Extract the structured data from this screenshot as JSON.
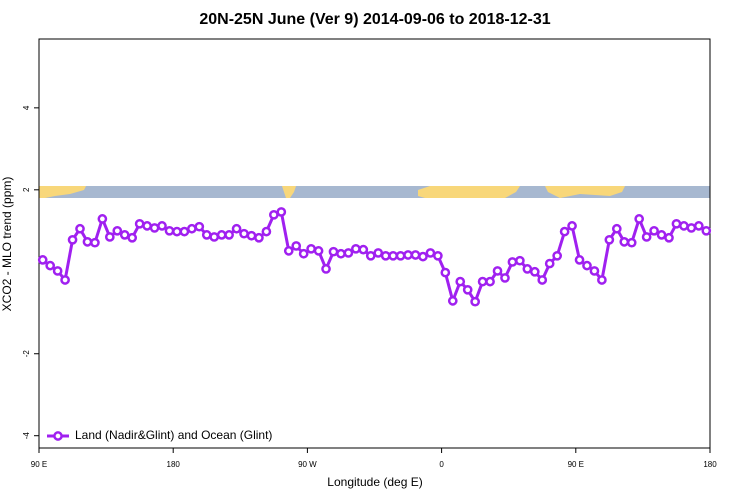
{
  "chart_data": {
    "type": "line",
    "title": "20N-25N June (Ver 9)   2014-09-06 to 2018-12-31",
    "x_label": "Longitude (deg E)",
    "y_label": "XCO2 - MLO trend (ppm)",
    "x": [
      92.5,
      97.5,
      102.5,
      107.5,
      112.5,
      117.5,
      122.5,
      127.5,
      132.5,
      137.5,
      142.5,
      147.5,
      152.5,
      157.5,
      162.5,
      167.5,
      172.5,
      177.5,
      182.5,
      187.5,
      192.5,
      197.5,
      202.5,
      207.5,
      212.5,
      217.5,
      222.5,
      227.5,
      232.5,
      237.5,
      242.5,
      247.5,
      252.5,
      257.5,
      262.5,
      267.5,
      272.5,
      277.5,
      282.5,
      287.5,
      292.5,
      297.5,
      302.5,
      307.5,
      312.5,
      317.5,
      322.5,
      327.5,
      332.5,
      337.5,
      342.5,
      347.5,
      352.5,
      357.5,
      362.5,
      367.5,
      372.5,
      377.5,
      382.5,
      387.5,
      392.5,
      397.5,
      402.5,
      407.5,
      412.5,
      417.5,
      422.5,
      427.5,
      432.5,
      437.5,
      442.5,
      447.5,
      452.5,
      457.5,
      462.5,
      467.5,
      472.5,
      477.5,
      482.5,
      487.5,
      492.5,
      497.5,
      502.5,
      507.5,
      512.5,
      517.5,
      522.5,
      527.5,
      532.5,
      537.5
    ],
    "series": [
      {
        "name": "Land (Nadir&Glint) and Ocean (Glint)",
        "color": "#a020f0",
        "values": [
          0.29,
          0.15,
          0.02,
          -0.2,
          0.78,
          1.05,
          0.73,
          0.71,
          1.29,
          0.85,
          1.0,
          0.9,
          0.83,
          1.17,
          1.12,
          1.07,
          1.12,
          1.0,
          0.98,
          0.98,
          1.05,
          1.1,
          0.9,
          0.85,
          0.9,
          0.9,
          1.05,
          0.93,
          0.88,
          0.83,
          0.98,
          1.39,
          1.46,
          0.51,
          0.63,
          0.44,
          0.56,
          0.51,
          0.07,
          0.49,
          0.44,
          0.46,
          0.56,
          0.54,
          0.39,
          0.46,
          0.39,
          0.39,
          0.39,
          0.41,
          0.41,
          0.37,
          0.46,
          0.39,
          -0.02,
          -0.71,
          -0.24,
          -0.44,
          -0.73,
          -0.24,
          -0.24,
          0.02,
          -0.15,
          0.24,
          0.27,
          0.07,
          0.0,
          -0.2,
          0.2,
          0.39,
          0.98,
          1.12,
          0.29,
          0.15,
          0.02,
          -0.2,
          0.78,
          1.05,
          0.73,
          0.71,
          1.29,
          0.85,
          1.0,
          0.9,
          0.83,
          1.17,
          1.12,
          1.07,
          1.12,
          1.0
        ]
      }
    ],
    "xlim": [
      90,
      540
    ],
    "xticks": [
      {
        "value": 90,
        "label": "90 E"
      },
      180,
      {
        "value": 270,
        "label": "90 W"
      },
      {
        "value": 360,
        "label": "0"
      },
      {
        "value": 450,
        "label": "90 E"
      },
      {
        "value": 540,
        "label": "180"
      }
    ],
    "ylim": [
      -4.3,
      5.68
    ],
    "yticks": [
      -4,
      -2,
      2,
      4
    ],
    "legend": "bottom-left"
  }
}
